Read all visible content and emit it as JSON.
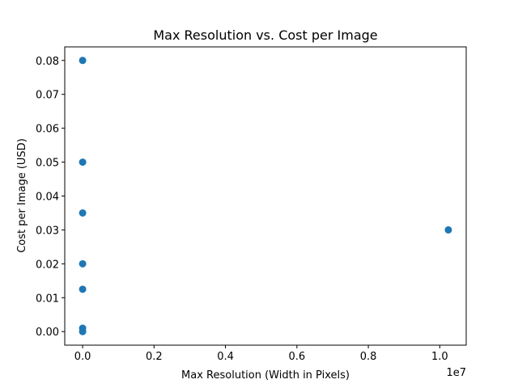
{
  "chart_data": {
    "type": "scatter",
    "title": "Max Resolution vs. Cost per Image",
    "xlabel": "Max Resolution (Width in Pixels)",
    "ylabel": "Cost per Image (USD)",
    "x_offset_label": "1e7",
    "xlim": [
      -500000,
      10740000
    ],
    "ylim": [
      -0.004,
      0.084
    ],
    "xticks": [
      {
        "value": 0,
        "label": "0.0"
      },
      {
        "value": 2000000,
        "label": "0.2"
      },
      {
        "value": 4000000,
        "label": "0.4"
      },
      {
        "value": 6000000,
        "label": "0.6"
      },
      {
        "value": 8000000,
        "label": "0.8"
      },
      {
        "value": 10000000,
        "label": "1.0"
      }
    ],
    "yticks": [
      {
        "value": 0.0,
        "label": "0.00"
      },
      {
        "value": 0.01,
        "label": "0.01"
      },
      {
        "value": 0.02,
        "label": "0.02"
      },
      {
        "value": 0.03,
        "label": "0.03"
      },
      {
        "value": 0.04,
        "label": "0.04"
      },
      {
        "value": 0.05,
        "label": "0.05"
      },
      {
        "value": 0.06,
        "label": "0.06"
      },
      {
        "value": 0.07,
        "label": "0.07"
      },
      {
        "value": 0.08,
        "label": "0.08"
      }
    ],
    "grid": false,
    "marker_color": "#1f77b4",
    "points": [
      {
        "x": 1024,
        "y": 0.08
      },
      {
        "x": 1024,
        "y": 0.05
      },
      {
        "x": 1024,
        "y": 0.035
      },
      {
        "x": 1024,
        "y": 0.02
      },
      {
        "x": 1024,
        "y": 0.0125
      },
      {
        "x": 1024,
        "y": 0.001
      },
      {
        "x": 1024,
        "y": 0.0
      },
      {
        "x": 10240000,
        "y": 0.03
      }
    ]
  }
}
